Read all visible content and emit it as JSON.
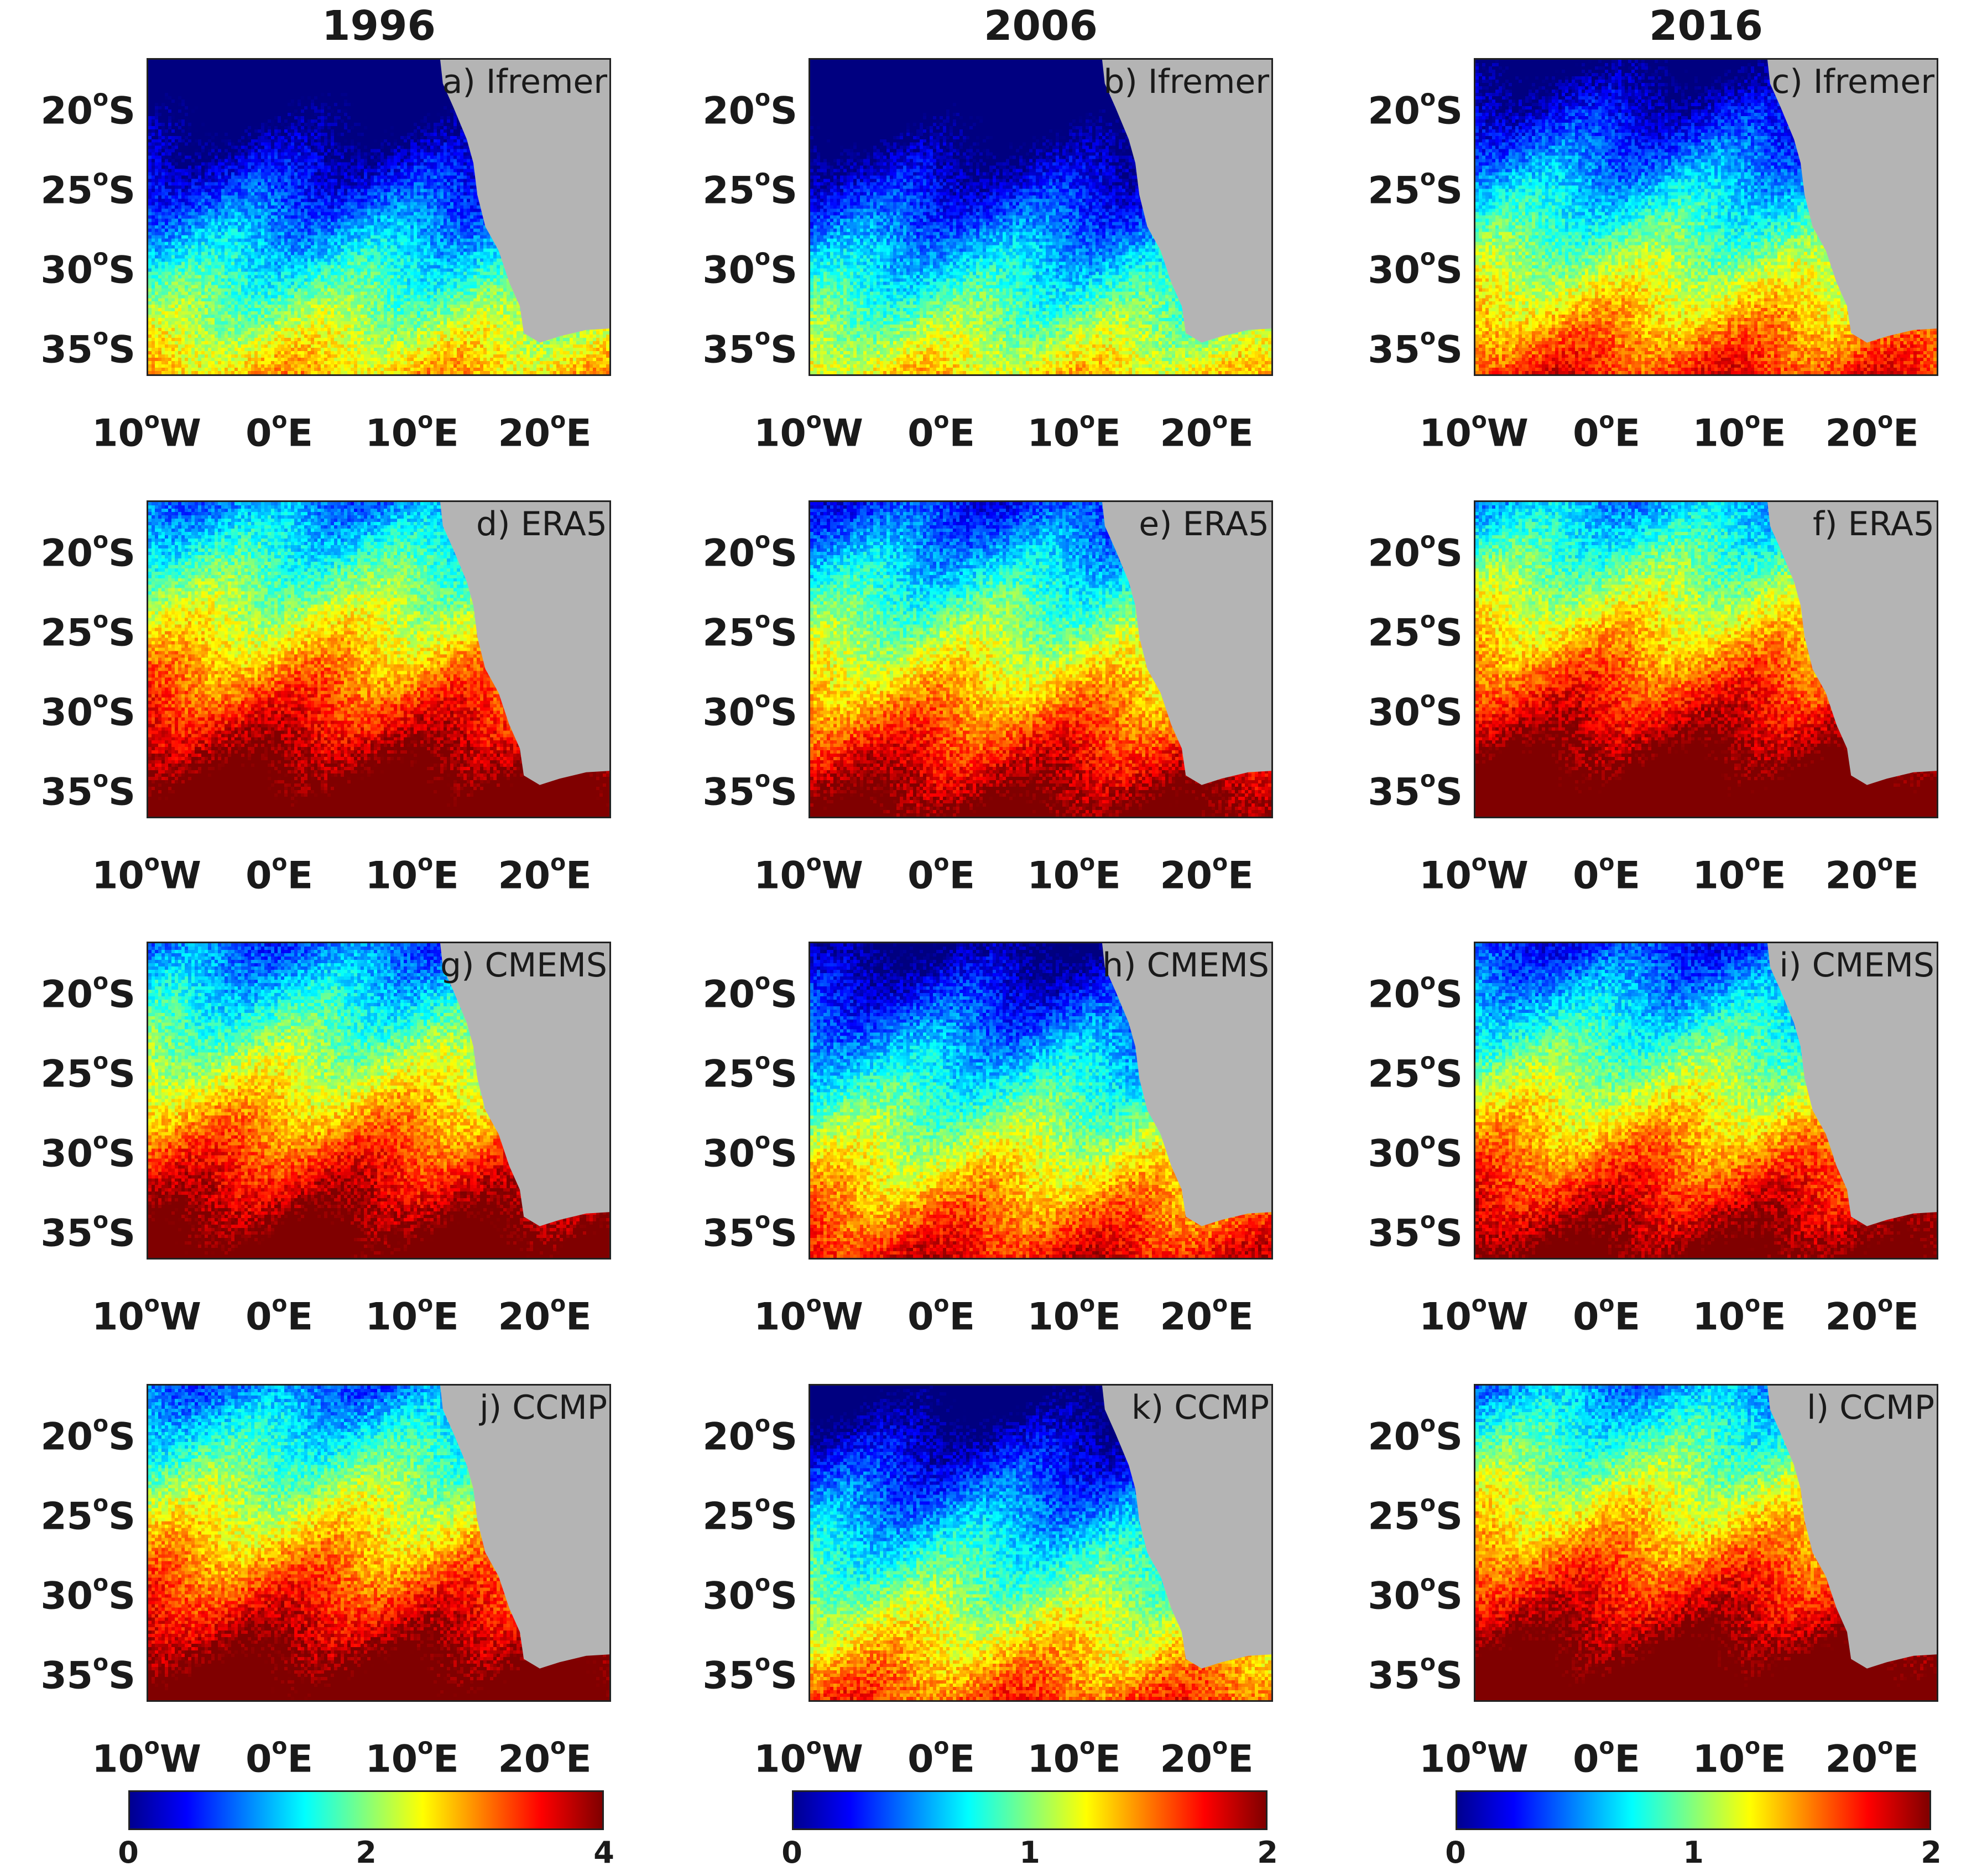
{
  "columns": [
    {
      "year": "1996"
    },
    {
      "year": "2006"
    },
    {
      "year": "2016"
    }
  ],
  "panels": [
    {
      "label": "a) Ifremer",
      "row": 0,
      "col": 0,
      "level": 0.2
    },
    {
      "label": "b) Ifremer",
      "row": 0,
      "col": 1,
      "level": 0.16
    },
    {
      "label": "c) Ifremer",
      "row": 0,
      "col": 2,
      "level": 0.36
    },
    {
      "label": "d) ERA5",
      "row": 1,
      "col": 0,
      "level": 0.66
    },
    {
      "label": "e) ERA5",
      "row": 1,
      "col": 1,
      "level": 0.56
    },
    {
      "label": "f) ERA5",
      "row": 1,
      "col": 2,
      "level": 0.7
    },
    {
      "label": "g) CMEMS",
      "row": 2,
      "col": 0,
      "level": 0.62
    },
    {
      "label": "h) CMEMS",
      "row": 2,
      "col": 1,
      "level": 0.4
    },
    {
      "label": "i) CMEMS",
      "row": 2,
      "col": 2,
      "level": 0.56
    },
    {
      "label": "j) CCMP",
      "row": 3,
      "col": 0,
      "level": 0.64
    },
    {
      "label": "k) CCMP",
      "row": 3,
      "col": 1,
      "level": 0.32
    },
    {
      "label": "l) CCMP",
      "row": 3,
      "col": 2,
      "level": 0.68
    }
  ],
  "y_ticks": [
    {
      "num": "20",
      "sup": "o",
      "hem": "S",
      "lat": -20
    },
    {
      "num": "25",
      "sup": "o",
      "hem": "S",
      "lat": -25
    },
    {
      "num": "30",
      "sup": "o",
      "hem": "S",
      "lat": -30
    },
    {
      "num": "35",
      "sup": "o",
      "hem": "S",
      "lat": -35
    }
  ],
  "x_ticks": [
    {
      "num": "10",
      "sup": "o",
      "hem": "W",
      "lon": -10
    },
    {
      "num": "0",
      "sup": "o",
      "hem": "E",
      "lon": 0
    },
    {
      "num": "10",
      "sup": "o",
      "hem": "E",
      "lon": 10
    },
    {
      "num": "20",
      "sup": "o",
      "hem": "E",
      "lon": 20
    }
  ],
  "map_extent": {
    "lon_min": -10,
    "lon_max": 25,
    "lat_min": -37,
    "lat_max": -17
  },
  "colorbars": [
    {
      "col": 0,
      "ticks": [
        "0",
        "2",
        "4"
      ],
      "min": 0,
      "max": 4
    },
    {
      "col": 1,
      "ticks": [
        "0",
        "1",
        "2"
      ],
      "min": 0,
      "max": 2
    },
    {
      "col": 2,
      "ticks": [
        "0",
        "1",
        "2"
      ],
      "min": 0,
      "max": 2
    }
  ],
  "colormap": "jet",
  "colors": {
    "land": "#b4b4b4",
    "background": "#ffffff"
  }
}
